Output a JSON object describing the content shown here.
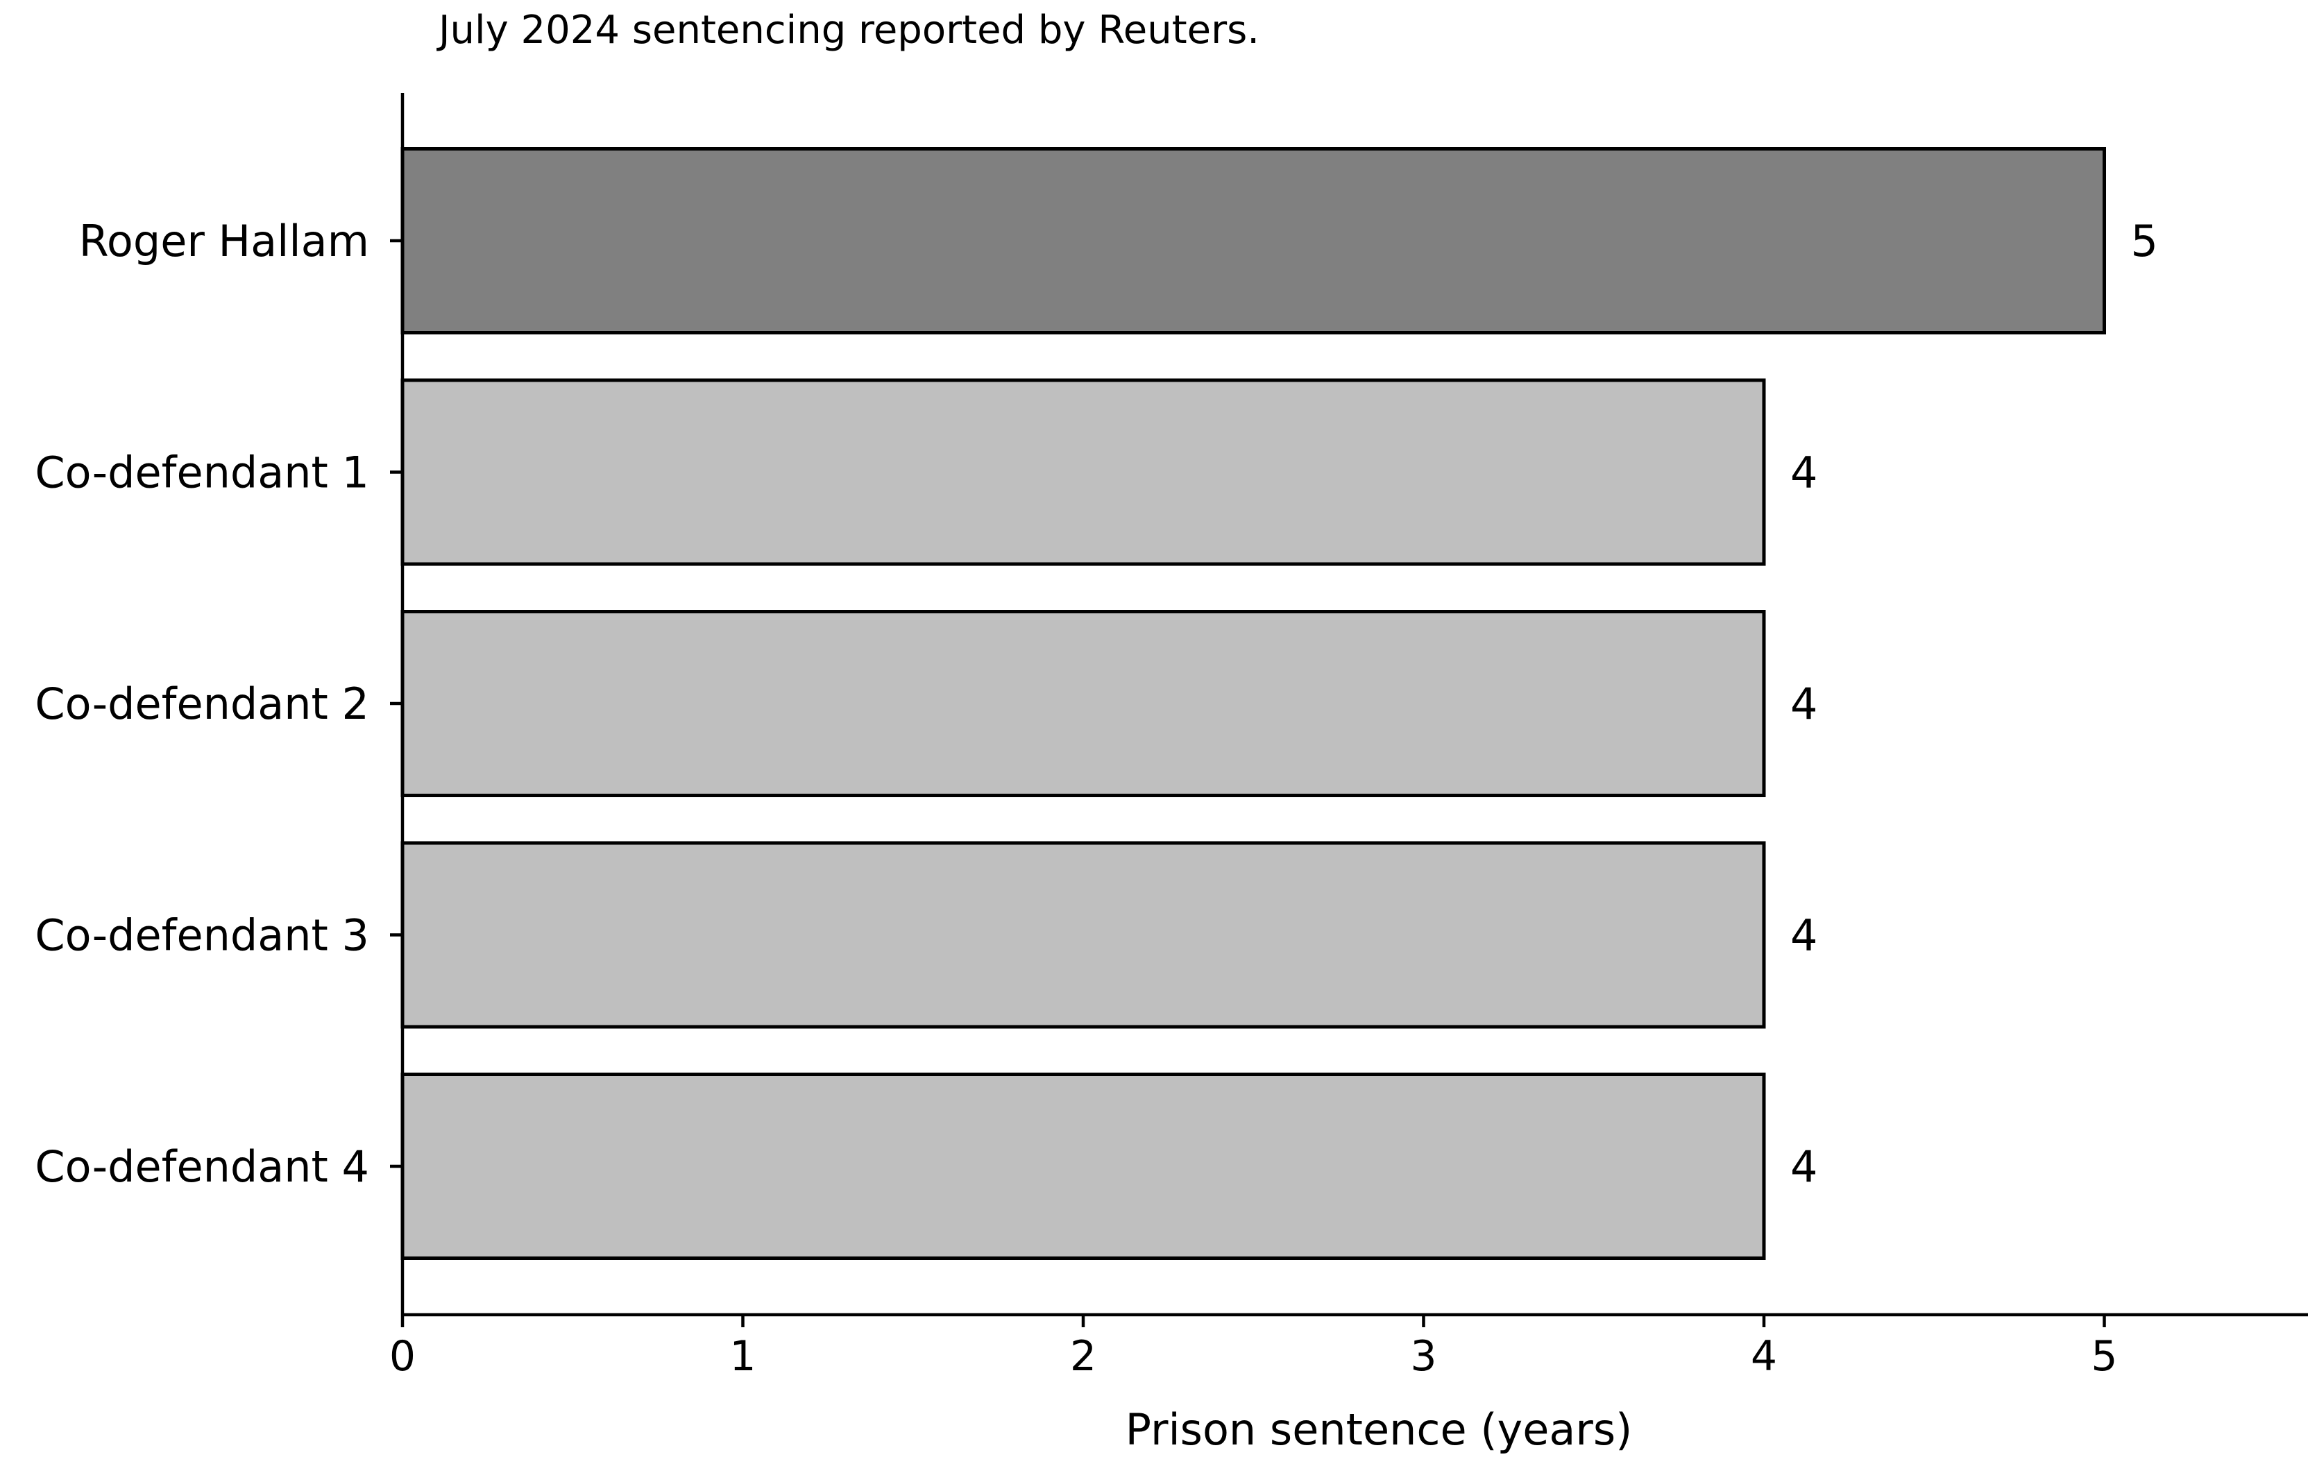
{
  "chart_data": {
    "type": "bar",
    "orientation": "horizontal",
    "subtitle": "July 2024 sentencing reported by Reuters.",
    "categories": [
      "Roger Hallam",
      "Co-defendant 1",
      "Co-defendant 2",
      "Co-defendant 3",
      "Co-defendant 4"
    ],
    "values": [
      5,
      4,
      4,
      4,
      4
    ],
    "value_labels": [
      "5",
      "4",
      "4",
      "4",
      "4"
    ],
    "bar_colors": [
      "#808080",
      "#bfbfbf",
      "#bfbfbf",
      "#bfbfbf",
      "#bfbfbf"
    ],
    "xlabel": "Prison sentence (years)",
    "ylabel": "",
    "xlim": [
      0,
      5.6
    ],
    "xticks": [
      "0",
      "1",
      "2",
      "3",
      "4",
      "5"
    ],
    "grid": false,
    "legend": "none"
  }
}
